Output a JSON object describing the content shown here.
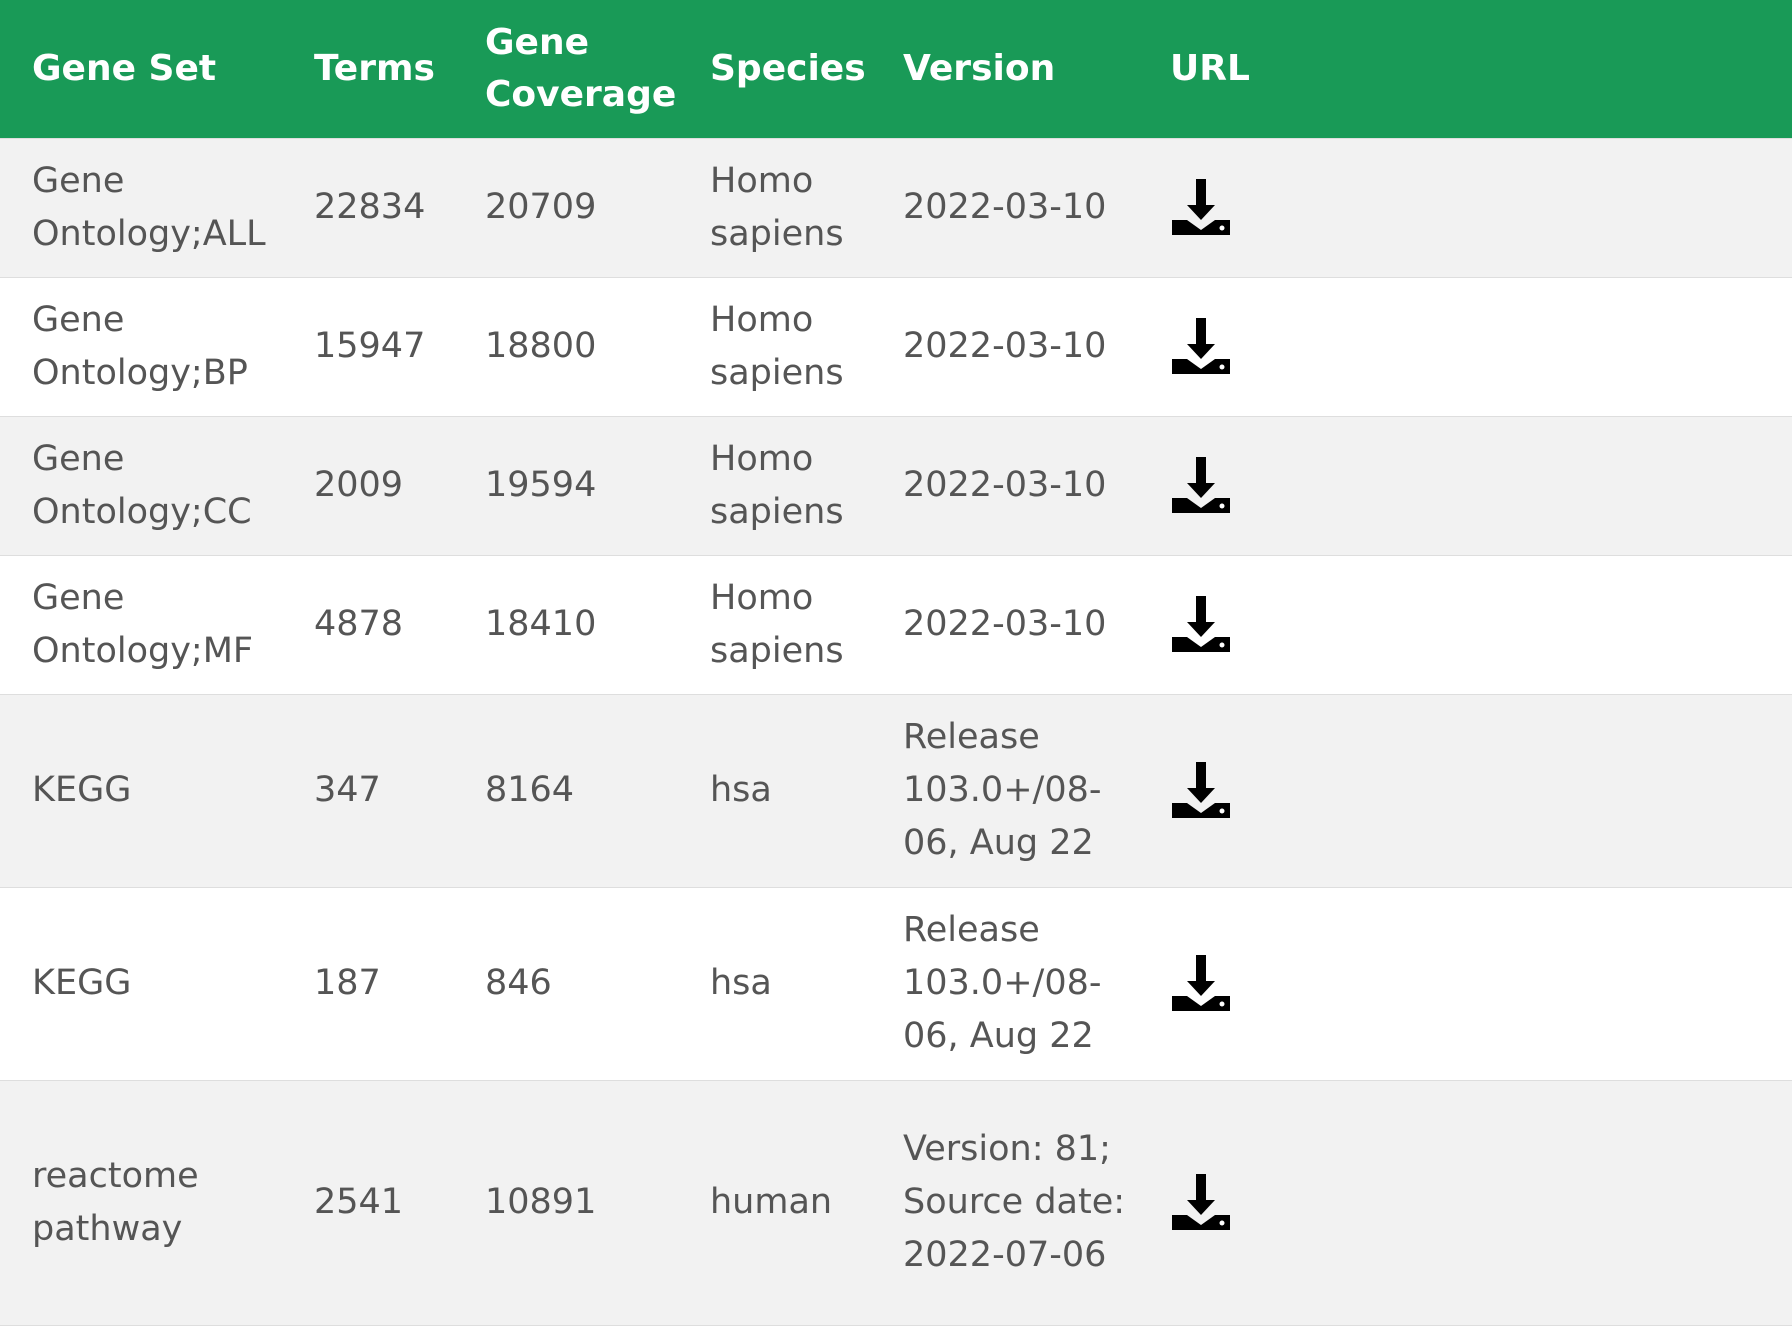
{
  "table": {
    "headers": {
      "gene_set": "Gene Set",
      "terms": "Terms",
      "gene_coverage": "Gene Coverage",
      "species": "Species",
      "version": "Version",
      "url": "URL"
    },
    "rows": [
      {
        "gene_set": "Gene Ontology;ALL",
        "terms": "22834",
        "gene_coverage": "20709",
        "species": "Homo sapiens",
        "version": "2022-03-10",
        "url_icon": "download-icon"
      },
      {
        "gene_set": "Gene Ontology;BP",
        "terms": "15947",
        "gene_coverage": "18800",
        "species": "Homo sapiens",
        "version": "2022-03-10",
        "url_icon": "download-icon"
      },
      {
        "gene_set": "Gene Ontology;CC",
        "terms": "2009",
        "gene_coverage": "19594",
        "species": "Homo sapiens",
        "version": "2022-03-10",
        "url_icon": "download-icon"
      },
      {
        "gene_set": "Gene Ontology;MF",
        "terms": "4878",
        "gene_coverage": "18410",
        "species": "Homo sapiens",
        "version": "2022-03-10",
        "url_icon": "download-icon"
      },
      {
        "gene_set": "KEGG",
        "terms": "347",
        "gene_coverage": "8164",
        "species": "hsa",
        "version": "Release 103.0+/08-06, Aug 22",
        "url_icon": "download-icon"
      },
      {
        "gene_set": "KEGG",
        "terms": "187",
        "gene_coverage": "846",
        "species": "hsa",
        "version": "Release 103.0+/08-06, Aug 22",
        "url_icon": "download-icon"
      },
      {
        "gene_set": "reactome pathway",
        "terms": "2541",
        "gene_coverage": "10891",
        "species": "human",
        "version": "Version: 81; Source date: 2022-07-06",
        "url_icon": "download-icon"
      }
    ]
  },
  "colors": {
    "header_bg": "#199a57",
    "header_text": "#ffffff",
    "row_alt_bg": "#f2f2f2",
    "row_bg": "#ffffff",
    "body_text": "#555555",
    "icon": "#000000"
  }
}
